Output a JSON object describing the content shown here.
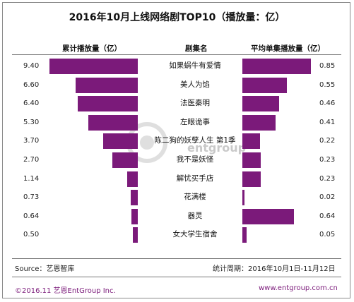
{
  "title": "2016年10月上线网络剧TOP10（播放量：亿）",
  "headers": {
    "left": "累计播放量（亿）",
    "center": "剧集名",
    "right": "平均单集播放量（亿）"
  },
  "watermark": "entgroup",
  "chart_data": {
    "type": "bar",
    "title": "2016年10月上线网络剧TOP10（播放量：亿）",
    "categories": [
      "如果蜗牛有爱情",
      "美人为馅",
      "法医秦明",
      "左眼诡事",
      "陈二狗的妖孽人生 第1季",
      "我不是妖怪",
      "解忧买手店",
      "花满楼",
      "器灵",
      "女大学生宿舍"
    ],
    "series": [
      {
        "name": "累计播放量（亿）",
        "values": [
          9.4,
          6.6,
          6.4,
          5.3,
          3.7,
          2.7,
          1.14,
          0.73,
          0.64,
          0.5
        ]
      },
      {
        "name": "平均单集播放量（亿）",
        "values": [
          0.85,
          0.55,
          0.46,
          0.41,
          0.22,
          0.23,
          0.23,
          0.02,
          0.64,
          0.05
        ]
      }
    ],
    "left_labels": [
      "9.40",
      "6.60",
      "6.40",
      "5.30",
      "3.70",
      "2.70",
      "1.14",
      "0.73",
      "0.64",
      "0.50"
    ],
    "right_labels": [
      "0.85",
      "0.55",
      "0.46",
      "0.41",
      "0.22",
      "0.23",
      "0.23",
      "0.02",
      "0.64",
      "0.05"
    ],
    "colors": {
      "bar": "#7b1a7a"
    }
  },
  "footer": {
    "source": "Source：艺恩智库",
    "period": "统计周期：2016年10月1日-11月12日",
    "copyright": "©2016.11  艺恩EntGroup Inc.",
    "website": "www.entgroup.com.cn"
  }
}
